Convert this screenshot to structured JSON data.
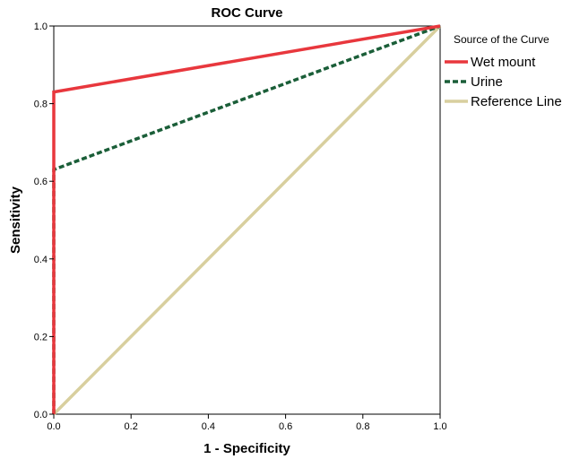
{
  "chart_data": {
    "type": "line",
    "title": "ROC Curve",
    "xlabel": "1 - Specificity",
    "ylabel": "Sensitivity",
    "xlim": [
      0,
      1
    ],
    "ylim": [
      0,
      1
    ],
    "xticks": [
      "0.0",
      "0.2",
      "0.4",
      "0.6",
      "0.8",
      "1.0"
    ],
    "yticks": [
      "0.0",
      "0.2",
      "0.4",
      "0.6",
      "0.8",
      "1.0"
    ],
    "grid": false,
    "legend": {
      "title": "Source of the Curve",
      "placement": "right-top"
    },
    "series": [
      {
        "name": "Wet mount",
        "color": "#e8373d",
        "style": "solid",
        "points": [
          [
            0,
            0
          ],
          [
            0,
            0.83
          ],
          [
            1,
            1
          ]
        ]
      },
      {
        "name": "Urine",
        "color": "#1a5e38",
        "style": "dashed",
        "points": [
          [
            0,
            0
          ],
          [
            0,
            0.63
          ],
          [
            1,
            1
          ]
        ]
      },
      {
        "name": "Reference Line",
        "color": "#d8cf9e",
        "style": "solid",
        "points": [
          [
            0,
            0
          ],
          [
            1,
            1
          ]
        ]
      }
    ]
  }
}
